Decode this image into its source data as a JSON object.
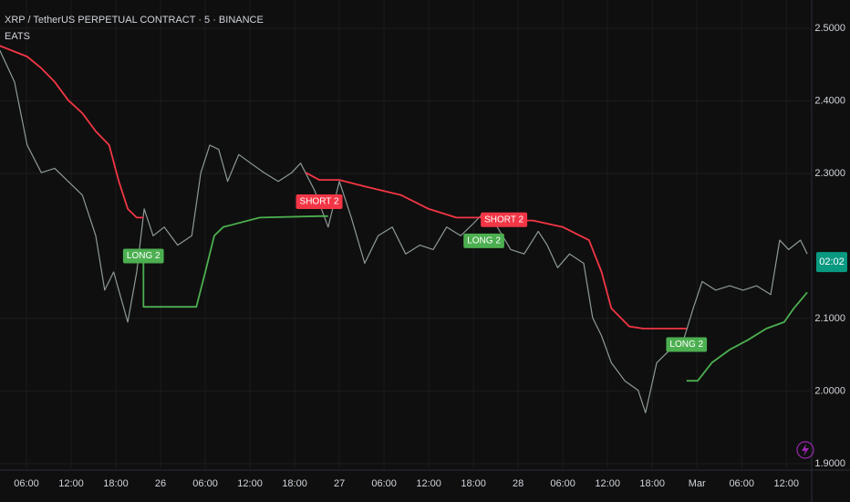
{
  "chart_data": {
    "type": "line",
    "title": "XRP / TetherUS PERPETUAL CONTRACT · 5 · BINANCE",
    "subtitle": "EATS",
    "countdown": "02:02",
    "background": "#0f0f0f",
    "grid": true,
    "xlim": [
      2.45,
      111.4
    ],
    "ylim": [
      2.539,
      1.891
    ],
    "xticks": [
      {
        "value": 6,
        "label": "06:00"
      },
      {
        "value": 12,
        "label": "12:00"
      },
      {
        "value": 18,
        "label": "18:00"
      },
      {
        "value": 24,
        "label": "26"
      },
      {
        "value": 30,
        "label": "06:00"
      },
      {
        "value": 36,
        "label": "12:00"
      },
      {
        "value": 42,
        "label": "18:00"
      },
      {
        "value": 48,
        "label": "27"
      },
      {
        "value": 54,
        "label": "06:00"
      },
      {
        "value": 60,
        "label": "12:00"
      },
      {
        "value": 66,
        "label": "18:00"
      },
      {
        "value": 72,
        "label": "28"
      },
      {
        "value": 78,
        "label": "06:00"
      },
      {
        "value": 84,
        "label": "12:00"
      },
      {
        "value": 90,
        "label": "18:00"
      },
      {
        "value": 96,
        "label": "Mar"
      },
      {
        "value": 102,
        "label": "06:00"
      },
      {
        "value": 108,
        "label": "12:00"
      }
    ],
    "yticks": [
      {
        "value": 2.5,
        "label": "2.5000"
      },
      {
        "value": 2.4,
        "label": "2.4000"
      },
      {
        "value": 2.3,
        "label": "2.3000"
      },
      {
        "value": 2.1,
        "label": "2.1000"
      },
      {
        "value": 2.0,
        "label": "2.0000"
      },
      {
        "value": 1.9,
        "label": "1.9000"
      }
    ],
    "series": [
      {
        "color": "#8e9a97",
        "x": [
          2.4,
          4.4,
          6.1,
          8.0,
          9.8,
          11.6,
          13.5,
          15.3,
          16.5,
          17.7,
          19.6,
          20.8,
          21.8,
          23.0,
          24.5,
          26.3,
          28.2,
          29.4,
          30.6,
          31.8,
          33.0,
          34.5,
          36.1,
          37.9,
          39.8,
          41.6,
          42.8,
          44.7,
          46.5,
          48.0,
          49.6,
          51.4,
          53.2,
          55.1,
          56.9,
          58.8,
          60.6,
          62.4,
          64.3,
          66.1,
          67.3,
          69.2,
          71.0,
          72.8,
          74.7,
          75.9,
          77.3,
          78.9,
          80.8,
          82.0,
          83.2,
          84.5,
          86.3,
          88.1,
          89.1,
          90.6,
          92.4,
          94.0,
          95.5,
          96.7,
          98.5,
          100.4,
          102.2,
          104.0,
          105.9,
          107.1,
          108.3,
          109.9,
          110.8
        ],
        "values": [
          2.47,
          2.426,
          2.339,
          2.301,
          2.307,
          2.289,
          2.27,
          2.214,
          2.139,
          2.164,
          2.095,
          2.164,
          2.251,
          2.214,
          2.226,
          2.201,
          2.214,
          2.301,
          2.339,
          2.333,
          2.289,
          2.326,
          2.314,
          2.301,
          2.289,
          2.301,
          2.314,
          2.276,
          2.226,
          2.289,
          2.239,
          2.176,
          2.214,
          2.226,
          2.189,
          2.201,
          2.195,
          2.226,
          2.214,
          2.232,
          2.245,
          2.226,
          2.195,
          2.189,
          2.22,
          2.201,
          2.17,
          2.189,
          2.176,
          2.101,
          2.076,
          2.039,
          2.014,
          2.001,
          1.97,
          2.039,
          2.057,
          2.064,
          2.114,
          2.151,
          2.139,
          2.145,
          2.139,
          2.145,
          2.133,
          2.208,
          2.195,
          2.208,
          2.189
        ]
      },
      {
        "color": "#f23645",
        "x": [
          2.4,
          6.1,
          8.0,
          9.8,
          11.6,
          13.5,
          15.3,
          17.1,
          18.4,
          19.6,
          20.8,
          21.7,
          null,
          43.5,
          45.3,
          48.0,
          51.4,
          56.3,
          60.0,
          63.7,
          67.4,
          70.1,
          74.0,
          78.0,
          81.5,
          83.2,
          84.5,
          86.9,
          88.8,
          93.7,
          94.6
        ],
        "values": [
          2.476,
          2.461,
          2.445,
          2.426,
          2.401,
          2.383,
          2.358,
          2.339,
          2.289,
          2.251,
          2.239,
          2.239,
          null,
          2.301,
          2.291,
          2.291,
          2.282,
          2.27,
          2.251,
          2.239,
          2.239,
          2.235,
          2.235,
          2.226,
          2.208,
          2.164,
          2.114,
          2.089,
          2.086,
          2.086,
          2.086
        ]
      },
      {
        "color": "#4caf50",
        "x": [
          21.7,
          21.7,
          28.8,
          30.0,
          31.2,
          32.4,
          37.3,
          45.3,
          46.5,
          null,
          67.4,
          68.6,
          null,
          94.6,
          96.1,
          98.0,
          100.4,
          102.8,
          105.3,
          107.7,
          109.0,
          110.8
        ],
        "values": [
          2.186,
          2.116,
          2.116,
          2.164,
          2.214,
          2.226,
          2.239,
          2.241,
          2.241,
          null,
          2.23,
          2.23,
          null,
          2.014,
          2.014,
          2.039,
          2.057,
          2.07,
          2.086,
          2.095,
          2.114,
          2.136
        ]
      }
    ],
    "annotations": [
      {
        "text": "LONG 2",
        "x": 21.7,
        "y": 2.186,
        "color": "#4caf50"
      },
      {
        "text": "SHORT 2",
        "x": 45.3,
        "y": 2.261,
        "color": "#f23645"
      },
      {
        "text": "LONG 2",
        "x": 67.4,
        "y": 2.207,
        "color": "#4caf50"
      },
      {
        "text": "SHORT 2",
        "x": 70.1,
        "y": 2.236,
        "color": "#f23645"
      },
      {
        "text": "LONG 2",
        "x": 94.6,
        "y": 2.064,
        "color": "#4caf50"
      }
    ]
  }
}
